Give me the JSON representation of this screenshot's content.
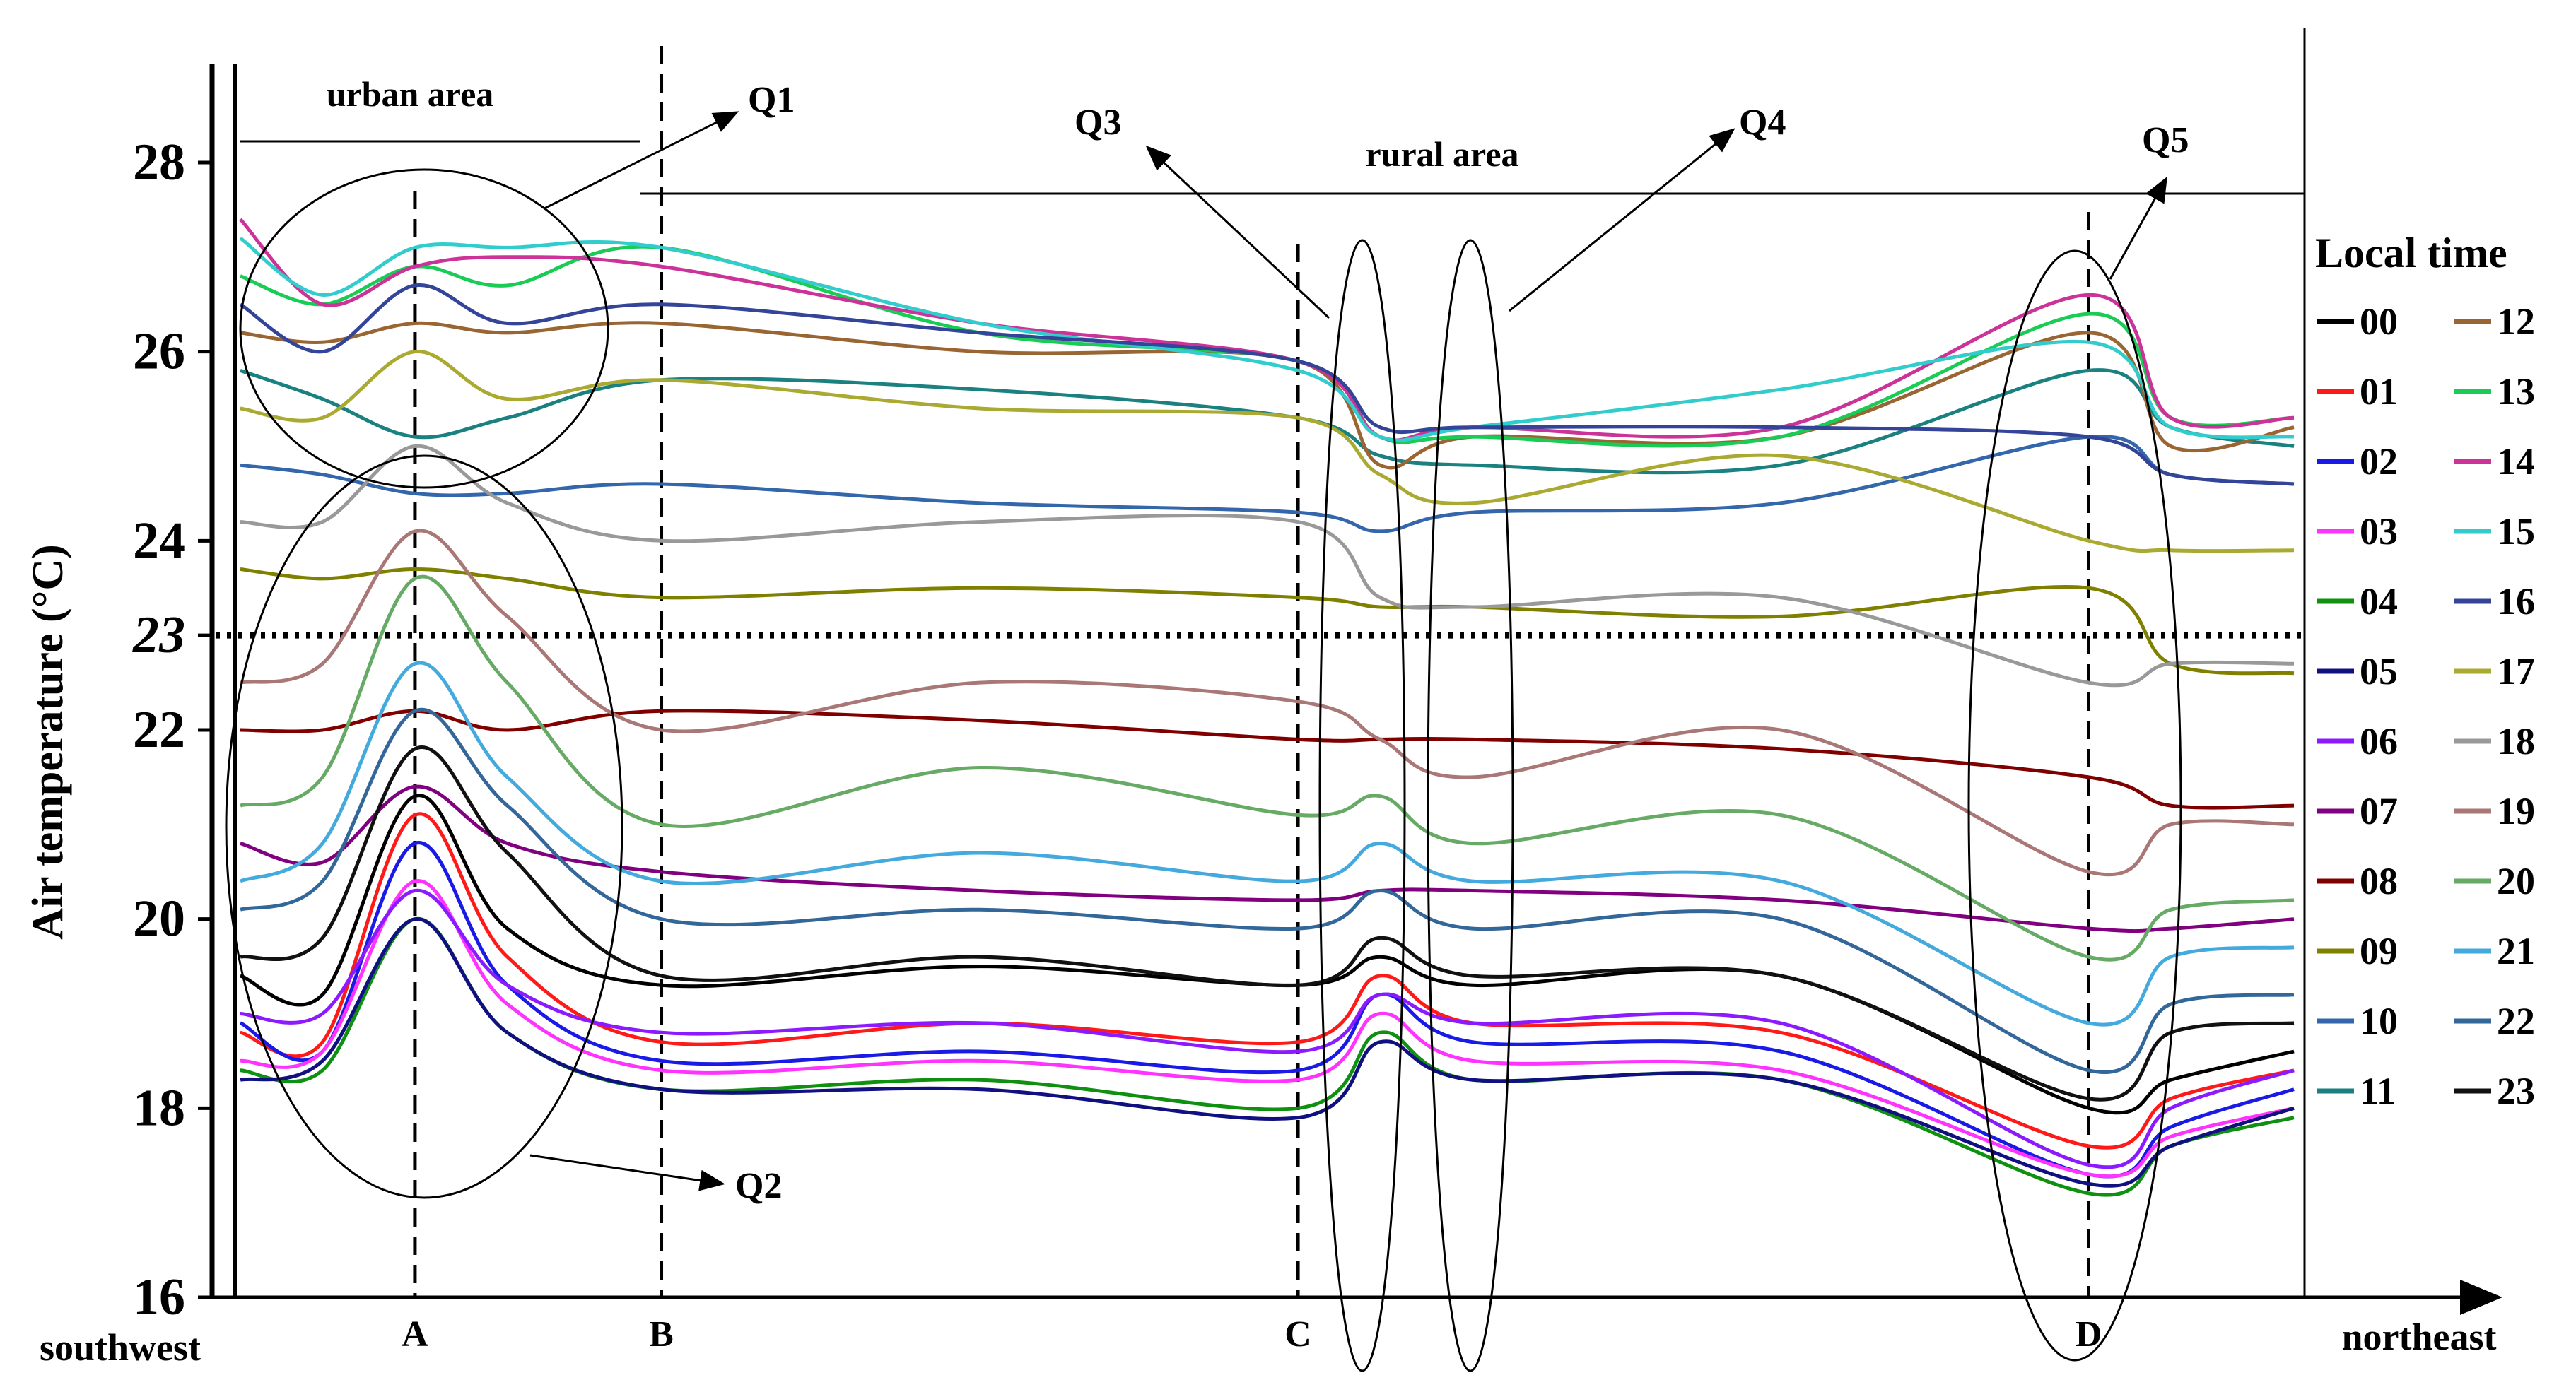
{
  "chart_data": {
    "type": "line",
    "ylabel": "Air temperature (°C)",
    "ylim": [
      16,
      29
    ],
    "yticks": [
      "16",
      "18",
      "20",
      "22",
      "23",
      "24",
      "26",
      "28"
    ],
    "x_start_label": "southwest",
    "x_end_label": "northeast",
    "x_range": [
      0,
      1
    ],
    "reference_line": {
      "value": 23,
      "style": "dotted"
    },
    "markers": [
      {
        "label": "A",
        "x": 0.085
      },
      {
        "label": "B",
        "x": 0.205
      },
      {
        "label": "C",
        "x": 0.515
      },
      {
        "label": "D",
        "x": 0.9
      }
    ],
    "regions": [
      {
        "label": "urban area",
        "x0": 0.013,
        "x1": 0.205,
        "y": 28.2
      },
      {
        "label": "rural area",
        "x0": 0.205,
        "x1": 1.0,
        "y": 27.65
      }
    ],
    "annotations": [
      {
        "label": "Q1",
        "target": "urban area high temperatures"
      },
      {
        "label": "Q2",
        "target": "urban area low temperatures"
      },
      {
        "label": "Q3",
        "target": "rural dip 1"
      },
      {
        "label": "Q4",
        "target": "rural dip 2"
      },
      {
        "label": "Q5",
        "target": "rural dip near D"
      }
    ],
    "legend": {
      "title": "Local time",
      "position": "right"
    },
    "key_x": [
      0.0,
      0.04,
      0.085,
      0.13,
      0.205,
      0.36,
      0.515,
      0.555,
      0.6,
      0.75,
      0.9,
      0.94,
      1.0
    ],
    "series": [
      {
        "name": "00",
        "color": "#000000",
        "values": [
          19.4,
          19.2,
          21.3,
          19.9,
          19.3,
          19.5,
          19.3,
          19.6,
          19.3,
          19.4,
          18.0,
          18.3,
          18.6
        ]
      },
      {
        "name": "01",
        "color": "#ff1a1a",
        "values": [
          18.8,
          18.7,
          21.1,
          19.6,
          18.7,
          18.9,
          18.7,
          19.4,
          18.9,
          18.8,
          17.6,
          18.1,
          18.4
        ]
      },
      {
        "name": "02",
        "color": "#1a1ae6",
        "values": [
          18.9,
          18.6,
          20.8,
          19.3,
          18.5,
          18.6,
          18.4,
          19.2,
          18.7,
          18.6,
          17.3,
          17.8,
          18.2
        ]
      },
      {
        "name": "03",
        "color": "#ff33ff",
        "values": [
          18.5,
          18.6,
          20.4,
          19.1,
          18.4,
          18.5,
          18.3,
          19.0,
          18.5,
          18.4,
          17.3,
          17.7,
          18.0
        ]
      },
      {
        "name": "04",
        "color": "#109010",
        "values": [
          18.4,
          18.4,
          20.0,
          18.8,
          18.2,
          18.3,
          18.0,
          18.8,
          18.3,
          18.3,
          17.1,
          17.6,
          17.9
        ]
      },
      {
        "name": "05",
        "color": "#101080",
        "values": [
          18.3,
          18.5,
          20.0,
          18.8,
          18.2,
          18.2,
          17.9,
          18.7,
          18.3,
          18.3,
          17.2,
          17.6,
          18.0
        ]
      },
      {
        "name": "06",
        "color": "#8c1aff",
        "values": [
          19.0,
          19.0,
          20.3,
          19.3,
          18.8,
          18.9,
          18.6,
          19.2,
          18.9,
          18.9,
          17.4,
          18.0,
          18.4
        ]
      },
      {
        "name": "07",
        "color": "#800080",
        "values": [
          20.8,
          20.6,
          21.4,
          20.8,
          20.5,
          20.3,
          20.2,
          20.3,
          20.3,
          20.2,
          19.9,
          19.9,
          20.0
        ]
      },
      {
        "name": "08",
        "color": "#800000",
        "values": [
          22.0,
          22.0,
          22.2,
          22.0,
          22.2,
          22.1,
          21.9,
          21.9,
          21.9,
          21.8,
          21.5,
          21.2,
          21.2
        ]
      },
      {
        "name": "09",
        "color": "#808000",
        "values": [
          23.7,
          23.6,
          23.7,
          23.6,
          23.4,
          23.5,
          23.4,
          23.3,
          23.3,
          23.2,
          23.5,
          22.7,
          22.6
        ]
      },
      {
        "name": "10",
        "color": "#3366aa",
        "values": [
          24.8,
          24.7,
          24.5,
          24.5,
          24.6,
          24.4,
          24.3,
          24.1,
          24.3,
          24.4,
          25.1,
          24.7,
          24.6
        ]
      },
      {
        "name": "11",
        "color": "#1a8080",
        "values": [
          25.8,
          25.5,
          25.1,
          25.3,
          25.7,
          25.6,
          25.3,
          24.9,
          24.8,
          24.8,
          25.8,
          25.2,
          25.0
        ]
      },
      {
        "name": "12",
        "color": "#996633",
        "values": [
          26.2,
          26.1,
          26.3,
          26.2,
          26.3,
          26.0,
          25.9,
          24.8,
          25.1,
          25.1,
          26.2,
          25.0,
          25.2
        ]
      },
      {
        "name": "13",
        "color": "#1acc55",
        "values": [
          26.8,
          26.5,
          26.9,
          26.7,
          27.1,
          26.2,
          25.9,
          25.1,
          25.1,
          25.1,
          26.4,
          25.3,
          25.3
        ]
      },
      {
        "name": "14",
        "color": "#cc3399",
        "values": [
          27.4,
          26.5,
          26.9,
          27.0,
          26.9,
          26.3,
          25.9,
          25.1,
          25.2,
          25.2,
          26.6,
          25.3,
          25.3
        ]
      },
      {
        "name": "15",
        "color": "#33cccc",
        "values": [
          27.2,
          26.6,
          27.1,
          27.1,
          27.1,
          26.3,
          25.8,
          25.1,
          25.2,
          25.6,
          26.1,
          25.2,
          25.1
        ]
      },
      {
        "name": "16",
        "color": "#334499",
        "values": [
          26.5,
          26.0,
          26.7,
          26.3,
          26.5,
          26.2,
          25.9,
          25.2,
          25.2,
          25.2,
          25.1,
          24.7,
          24.6
        ]
      },
      {
        "name": "17",
        "color": "#aaaa33",
        "values": [
          25.4,
          25.3,
          26.0,
          25.5,
          25.7,
          25.4,
          25.3,
          24.7,
          24.4,
          24.9,
          24.0,
          23.9,
          23.9
        ]
      },
      {
        "name": "18",
        "color": "#999999",
        "values": [
          24.2,
          24.2,
          25.0,
          24.4,
          24.0,
          24.2,
          24.2,
          23.4,
          23.3,
          23.4,
          22.5,
          22.7,
          22.7
        ]
      },
      {
        "name": "19",
        "color": "#aa7777",
        "values": [
          22.5,
          22.7,
          24.1,
          23.2,
          22.0,
          22.5,
          22.3,
          21.9,
          21.5,
          22.0,
          20.5,
          21.0,
          21.0
        ]
      },
      {
        "name": "20",
        "color": "#66aa66",
        "values": [
          21.2,
          21.5,
          23.6,
          22.5,
          21.0,
          21.6,
          21.1,
          21.3,
          20.8,
          21.1,
          19.6,
          20.1,
          20.2
        ]
      },
      {
        "name": "21",
        "color": "#44aadd",
        "values": [
          20.4,
          20.8,
          22.7,
          21.5,
          20.4,
          20.7,
          20.4,
          20.8,
          20.4,
          20.4,
          18.9,
          19.6,
          19.7
        ]
      },
      {
        "name": "22",
        "color": "#336699",
        "values": [
          20.1,
          20.4,
          22.2,
          21.2,
          20.0,
          20.1,
          19.9,
          20.3,
          19.9,
          20.0,
          18.4,
          19.1,
          19.2
        ]
      },
      {
        "name": "23",
        "color": "#111111",
        "values": [
          19.6,
          19.8,
          21.8,
          20.7,
          19.4,
          19.6,
          19.3,
          19.8,
          19.4,
          19.4,
          18.1,
          18.8,
          18.9
        ]
      }
    ]
  }
}
